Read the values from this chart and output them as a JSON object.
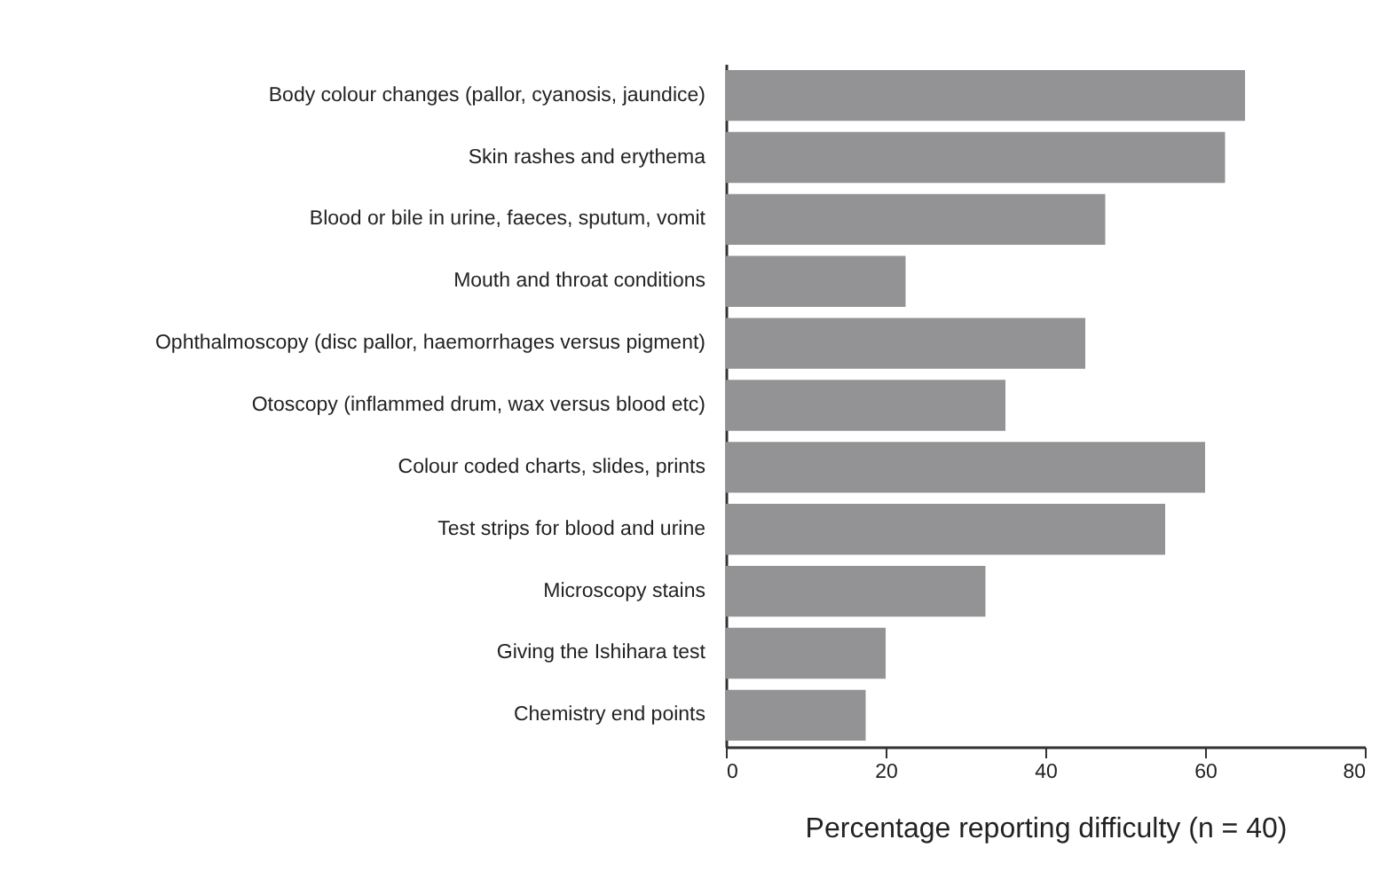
{
  "chart_data": {
    "type": "bar",
    "orientation": "horizontal",
    "xlabel": "Percentage reporting difficulty (n = 40)",
    "categories": [
      "Body colour changes (pallor, cyanosis, jaundice)",
      "Skin rashes and erythema",
      "Blood or bile in urine, faeces, sputum, vomit",
      "Mouth and throat conditions",
      "Ophthalmoscopy (disc pallor, haemorrhages versus pigment)",
      "Otoscopy (inflammed drum, wax versus blood etc)",
      "Colour coded charts, slides, prints",
      "Test strips for blood and urine",
      "Microscopy stains",
      "Giving the Ishihara test",
      "Chemistry end points"
    ],
    "values": [
      65,
      62.5,
      47.5,
      22.5,
      45,
      35,
      60,
      55,
      32.5,
      20,
      17.5
    ],
    "color": "#939396",
    "xlim": [
      0,
      80
    ],
    "xticks": [
      0,
      20,
      40,
      60,
      80
    ],
    "grid": false
  }
}
